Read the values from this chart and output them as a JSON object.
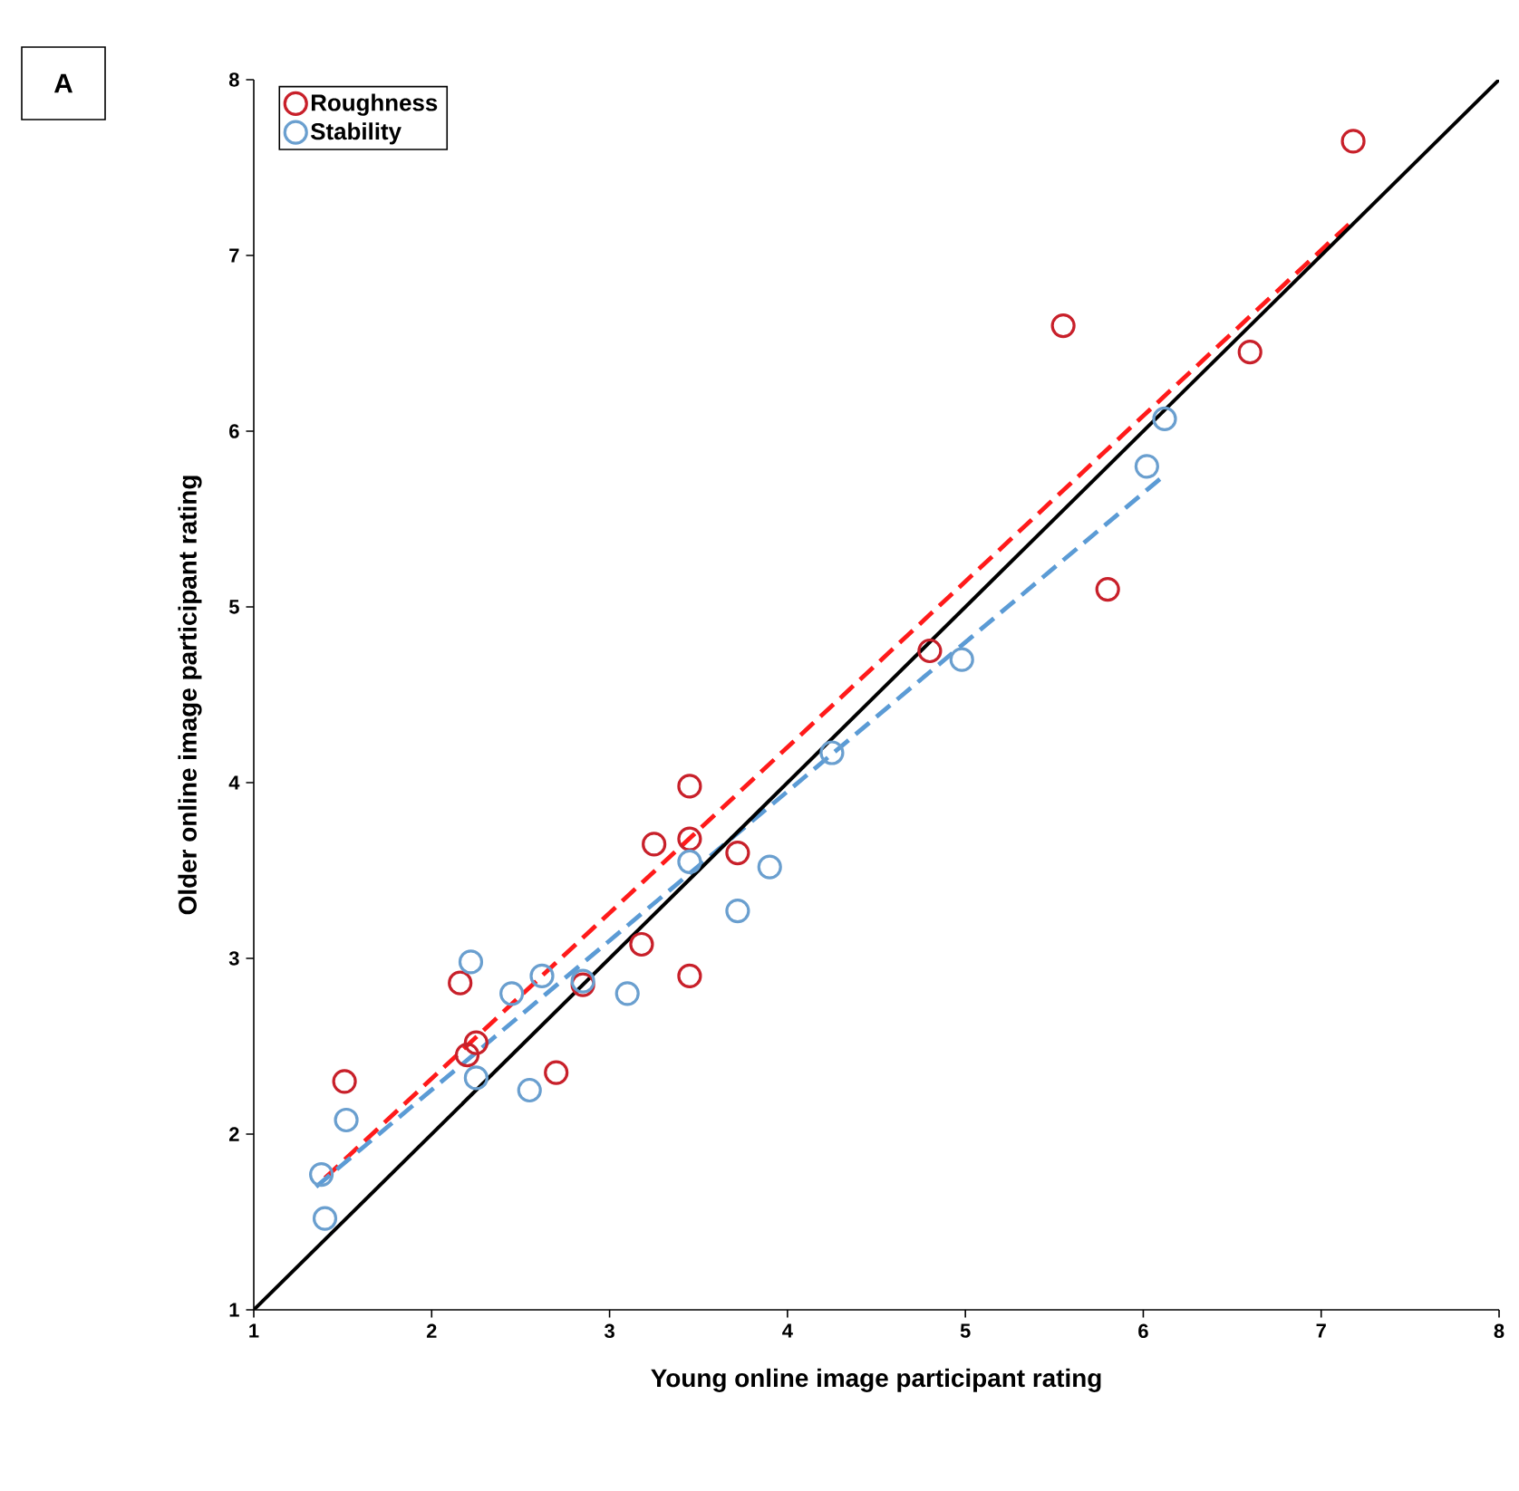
{
  "chart_data": {
    "type": "scatter",
    "xlabel": "Young online image participant rating",
    "ylabel": "Older online image participant  rating",
    "annotations": [
      "A"
    ],
    "xlim": [
      1,
      8
    ],
    "ylim": [
      1,
      8
    ],
    "xticks": [
      1,
      2,
      3,
      4,
      5,
      6,
      7,
      8
    ],
    "yticks": [
      1,
      2,
      3,
      4,
      5,
      6,
      7,
      8
    ],
    "grid": false,
    "legend": "top left",
    "series": [
      {
        "name": "Roughness",
        "color": "#c8202a",
        "marker": "circle",
        "x": [
          1.51,
          2.16,
          2.2,
          2.25,
          2.7,
          2.85,
          3.18,
          3.25,
          3.45,
          3.45,
          3.45,
          3.72,
          4.8,
          5.55,
          5.8,
          6.6,
          7.18
        ],
        "values": [
          2.3,
          2.86,
          2.45,
          2.52,
          2.35,
          2.85,
          3.08,
          3.65,
          2.9,
          3.68,
          3.98,
          3.6,
          4.75,
          6.6,
          5.1,
          6.45,
          7.65
        ]
      },
      {
        "name": "Stability",
        "color": "#6a9fcf",
        "marker": "circle",
        "x": [
          1.38,
          1.4,
          1.52,
          2.22,
          2.25,
          2.45,
          2.55,
          2.62,
          2.85,
          3.1,
          3.45,
          3.72,
          3.9,
          4.25,
          4.98,
          6.02,
          6.12
        ],
        "values": [
          1.77,
          1.52,
          2.08,
          2.98,
          2.32,
          2.8,
          2.25,
          2.9,
          2.87,
          2.8,
          3.55,
          3.27,
          3.52,
          4.17,
          4.7,
          5.8,
          6.07
        ]
      },
      {
        "type": "line",
        "color": "#ff1a1a",
        "line_style": "dashed",
        "marker": "none",
        "x": [
          1.4,
          7.18
        ],
        "values": [
          1.75,
          7.2
        ]
      },
      {
        "type": "line",
        "color": "#5b9bd5",
        "line_style": "dashed",
        "marker": "none",
        "x": [
          1.35,
          6.12
        ],
        "values": [
          1.7,
          5.75
        ]
      },
      {
        "type": "line",
        "color": "#000000",
        "line_style": "solid",
        "marker": "none",
        "x": [
          1,
          8
        ],
        "values": [
          1,
          8
        ]
      }
    ]
  }
}
